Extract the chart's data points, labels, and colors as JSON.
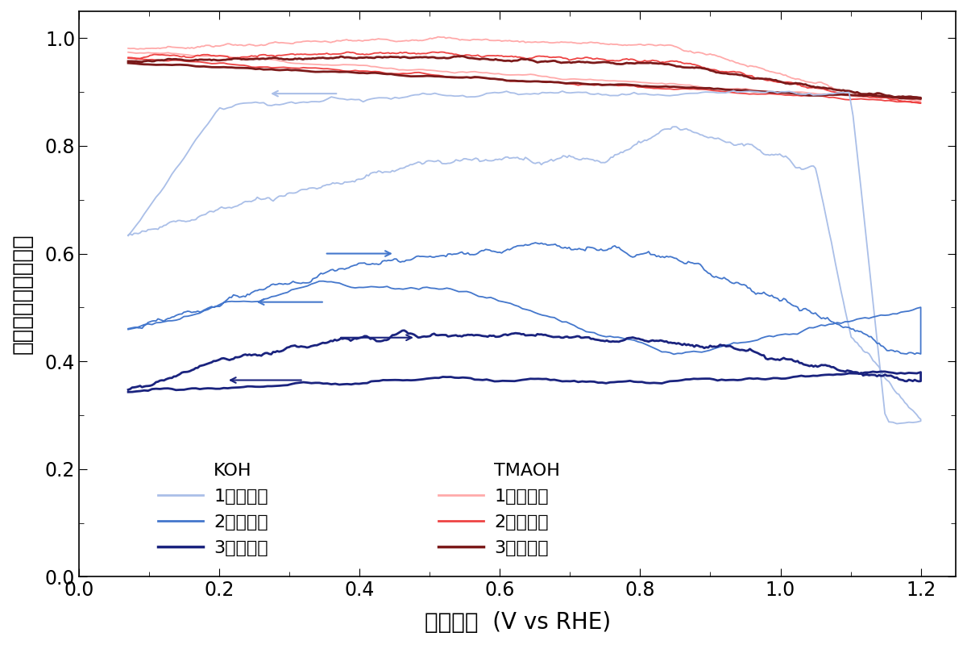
{
  "xlabel": "電極電位  (V vs RHE)",
  "ylabel": "規格化した回折強度",
  "xlim": [
    0.0,
    1.25
  ],
  "ylim": [
    0.0,
    1.05
  ],
  "xticks": [
    0.0,
    0.2,
    0.4,
    0.6,
    0.8,
    1.0,
    1.2
  ],
  "yticks": [
    0.0,
    0.2,
    0.4,
    0.6,
    0.8,
    1.0
  ],
  "colors": {
    "koh_cycle1": "#aabfe8",
    "koh_cycle2": "#4477cc",
    "koh_cycle3": "#1a237e",
    "tmaoh_cycle1": "#ffaaaa",
    "tmaoh_cycle2": "#ee4444",
    "tmaoh_cycle3": "#7b1a1a"
  },
  "legend_koh_label": "KOH",
  "legend_tmaoh_label": "TMAOH",
  "legend_cycle1": "1サイクル",
  "legend_cycle2": "2サイクル",
  "legend_cycle3": "3サイクル",
  "font_size_label": 20,
  "font_size_tick": 17,
  "font_size_legend": 16,
  "background_color": "#ffffff",
  "figsize": [
    12.0,
    8.0
  ],
  "dpi": 100
}
